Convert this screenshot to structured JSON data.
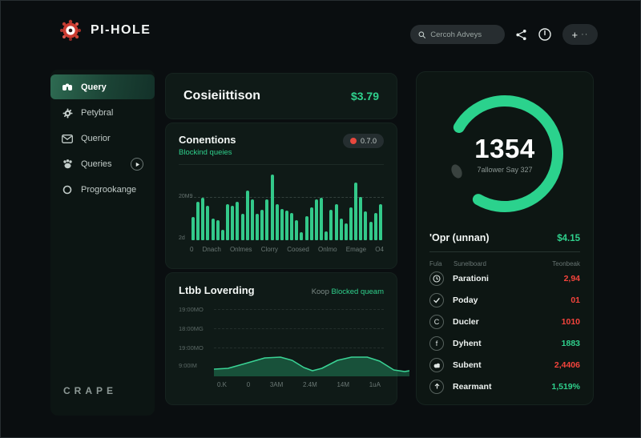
{
  "colors": {
    "green": "#2fd08c",
    "red": "#f4443c",
    "bar": "#33c98a",
    "badge_dot": "#e8483e"
  },
  "header": {
    "brand": "PI-HOLE",
    "search_placeholder": "Cercoh Adveys",
    "new_button_label": "+",
    "more_label": "··"
  },
  "sidebar": {
    "items": [
      {
        "label": "Query",
        "active": true
      },
      {
        "label": "Petybral",
        "active": false
      },
      {
        "label": "Querior",
        "active": false
      },
      {
        "label": "Queries",
        "active": false
      },
      {
        "label": "Progrookange",
        "active": false
      }
    ],
    "footer": "CRAPE"
  },
  "summary_card": {
    "title": "Cosieiittison",
    "value": "$3.79"
  },
  "connections_card": {
    "title": "Conentions",
    "subtitle": "Blockind queies",
    "badge": "0.7.0"
  },
  "loading_card": {
    "title": "Ltbb Loverding",
    "link_prefix": "Koop",
    "link_text": "Blocked queam"
  },
  "right_panel": {
    "summary": {
      "title": "'Opr (unnan)",
      "value": "$4.15"
    },
    "table": {
      "headers": [
        "Fula",
        "Sunelboard",
        "Teonbeak"
      ],
      "rows": [
        {
          "icon": "clock-icon",
          "label": "Parationi",
          "value": "2,94",
          "color": "red"
        },
        {
          "icon": "check-icon",
          "label": "Poday",
          "value": "01",
          "color": "red"
        },
        {
          "icon": "letter-c-icon",
          "label": "Ducler",
          "value": "1010",
          "color": "red"
        },
        {
          "icon": "letter-f-icon",
          "label": "Dyhent",
          "value": "1883",
          "color": "green"
        },
        {
          "icon": "cloud-icon",
          "label": "Subent",
          "value": "2,4406",
          "color": "red"
        },
        {
          "icon": "arrow-up-icon",
          "label": "Rearmant",
          "value": "1,519%",
          "color": "green"
        }
      ]
    }
  },
  "chart_data": [
    {
      "type": "bar",
      "title": "Conentions",
      "subtitle": "Blockind queies",
      "categories": [
        "0",
        "Dnach",
        "Onlmes",
        "Clorry",
        "Coosed",
        "Onlmo",
        "Emage",
        "O4"
      ],
      "values": [
        35,
        58,
        65,
        52,
        33,
        30,
        16,
        55,
        52,
        58,
        40,
        76,
        62,
        40,
        46,
        62,
        100,
        55,
        48,
        45,
        42,
        30,
        12,
        36,
        50,
        62,
        65,
        14,
        46,
        55,
        33,
        26,
        50,
        88,
        66,
        44,
        28,
        42,
        55
      ],
      "ylim": [
        0,
        100
      ],
      "gridline_value": 64,
      "y_gridline_label": "20M9",
      "y_min_label": "2d",
      "color": "#33c98a",
      "legend": "none"
    },
    {
      "type": "area",
      "title": "Ltbb Loverding",
      "y_labels": [
        "19:00MO",
        "18:00MG",
        "19:00MO",
        "9:00IM"
      ],
      "x_labels": [
        "0.K",
        "0",
        "3AM",
        "2.4M",
        "14M",
        "1uA"
      ],
      "points": [
        [
          0,
          27
        ],
        [
          18,
          26
        ],
        [
          40,
          20
        ],
        [
          65,
          13
        ],
        [
          85,
          12
        ],
        [
          100,
          16
        ],
        [
          115,
          25
        ],
        [
          126,
          29
        ],
        [
          138,
          26
        ],
        [
          158,
          16
        ],
        [
          176,
          12
        ],
        [
          196,
          12
        ],
        [
          212,
          17
        ],
        [
          230,
          28
        ],
        [
          244,
          30
        ],
        [
          250,
          29
        ]
      ],
      "baseline_y": 36,
      "color": "#2fd08c",
      "grid": "dashed horizontal"
    },
    {
      "type": "donut",
      "value": "1354",
      "subtitle": "7allower Say 327",
      "percent": 75,
      "color": "#2bd28d",
      "gap_position": "lower-left"
    }
  ]
}
